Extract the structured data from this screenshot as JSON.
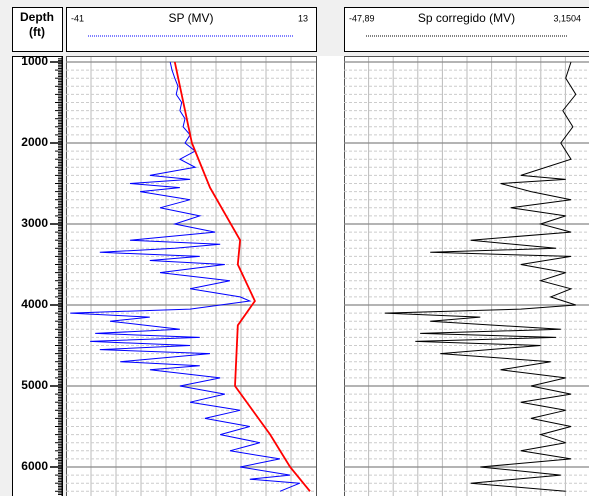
{
  "chart_data": {
    "type": "well-log",
    "depth_axis": {
      "title": [
        "Depth",
        "(ft)"
      ],
      "ylim": [
        950,
        6350
      ],
      "yticks": [
        1000,
        2000,
        3000,
        4000,
        5000,
        6000
      ]
    },
    "tracks": [
      {
        "name": "SP (MV)",
        "xlim": [
          -41,
          13
        ],
        "series": [
          {
            "color": "#0000ff",
            "depth": [
              1000,
              1100,
              1200,
              1300,
              1400,
              1500,
              1600,
              1700,
              1800,
              1900,
              2000,
              2100,
              2200,
              2300,
              2400,
              2450,
              2500,
              2550,
              2600,
              2700,
              2800,
              2900,
              3000,
              3100,
              3200,
              3250,
              3300,
              3350,
              3400,
              3450,
              3500,
              3600,
              3700,
              3800,
              3900,
              3950,
              4050,
              4100,
              4150,
              4200,
              4300,
              4350,
              4400,
              4450,
              4500,
              4550,
              4600,
              4700,
              4750,
              4800,
              4900,
              5000,
              5100,
              5200,
              5300,
              5400,
              5500,
              5600,
              5700,
              5800,
              5900,
              6000,
              6100,
              6150,
              6200,
              6300
            ],
            "values": [
              -18.5,
              -18.1,
              -17.5,
              -16.8,
              -17.2,
              -16.0,
              -16.4,
              -15.3,
              -15.7,
              -14.2,
              -15.3,
              -13.1,
              -16.4,
              -13.1,
              -22.9,
              -14.2,
              -27.2,
              -16.4,
              -25.0,
              -14.2,
              -20.7,
              -12.1,
              -17.5,
              -8.8,
              -27.2,
              -7.7,
              -17.5,
              -33.7,
              -12.1,
              -22.9,
              -6.7,
              -20.7,
              -5.6,
              -14.2,
              -3.4,
              -1.3,
              -14.2,
              -40.1,
              -22.9,
              -31.5,
              -16.4,
              -34.7,
              -12.1,
              -35.8,
              -14.2,
              -33.7,
              -9.9,
              -29.3,
              -12.1,
              -22.9,
              -7.7,
              -16.4,
              -6.7,
              -14.2,
              -3.4,
              -11.0,
              -1.3,
              -7.7,
              0.9,
              -5.6,
              5.2,
              -3.4,
              7.4,
              -1.3,
              9.5,
              5.2
            ]
          },
          {
            "color": "#ff0000",
            "depth": [
              1000,
              2000,
              2550,
              3200,
              3500,
              3950,
              4250,
              5000,
              5600,
              6000,
              6300
            ],
            "values": [
              -17.5,
              -13.8,
              -9.9,
              -3.4,
              -3.9,
              -0.2,
              -3.9,
              -4.5,
              3.1,
              7.4,
              11.7
            ]
          }
        ]
      },
      {
        "name": "Sp corregido (MV)",
        "xlim": [
          {
            "value": -47.89,
            "label": "-47,89"
          },
          {
            "value": 3.1504,
            "label": "3,1504"
          }
        ],
        "series": [
          {
            "color": "#000000",
            "depth": [
              1000,
              1200,
              1400,
              1600,
              1800,
              2000,
              2200,
              2400,
              2450,
              2500,
              2600,
              2700,
              2800,
              2900,
              3000,
              3100,
              3200,
              3300,
              3350,
              3400,
              3500,
              3600,
              3700,
              3800,
              3900,
              4000,
              4050,
              4100,
              4150,
              4200,
              4300,
              4350,
              4400,
              4450,
              4500,
              4600,
              4700,
              4800,
              4900,
              5000,
              5100,
              5200,
              5300,
              5400,
              5500,
              5600,
              5700,
              5800,
              5900,
              6000,
              6100,
              6200,
              6300
            ],
            "values": [
              -0.8,
              -1.9,
              0.2,
              -2.5,
              -0.4,
              -2.9,
              -0.8,
              -11.2,
              -1.9,
              -15.4,
              -9.1,
              -0.8,
              -13.3,
              -1.9,
              -7.1,
              -0.8,
              -21.6,
              -3.9,
              -30.0,
              -0.8,
              -11.2,
              -1.9,
              -7.1,
              -0.8,
              -5.0,
              0.2,
              -11.2,
              -39.4,
              -19.6,
              -30.0,
              -2.9,
              -32.1,
              -3.9,
              -33.1,
              -7.1,
              -27.9,
              -5.0,
              -15.4,
              -1.9,
              -9.1,
              -0.8,
              -11.2,
              -1.9,
              -9.1,
              -0.8,
              -7.1,
              -1.9,
              -11.2,
              -0.8,
              -19.6,
              -2.9,
              -21.6,
              -1.9
            ]
          }
        ]
      }
    ]
  }
}
